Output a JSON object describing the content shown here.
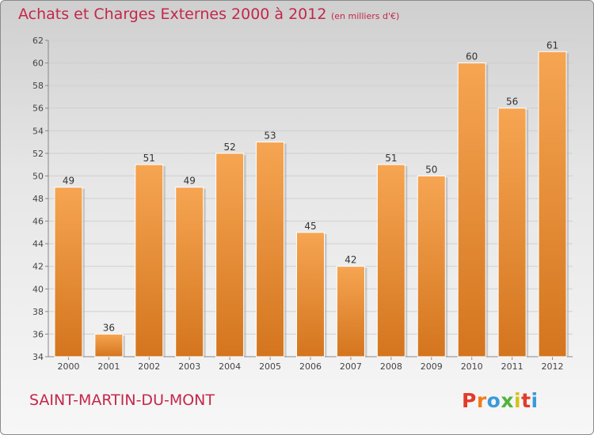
{
  "header": {
    "title": "Achats et Charges Externes 2000 à 2012",
    "unit": "(en milliers d'€)"
  },
  "footer": {
    "commune": "SAINT-MARTIN-DU-MONT",
    "logo_text": "Proxiti"
  },
  "colors": {
    "title": "#c4274a",
    "bar_light": "#f6a552",
    "bar_dark": "#d4751e",
    "logo_letters": [
      "#e23b2b",
      "#f07d1a",
      "#3a9ad8",
      "#52b33b",
      "#d4c21a",
      "#e23b2b",
      "#3a9ad8"
    ]
  },
  "chart_data": {
    "type": "bar",
    "categories": [
      "2000",
      "2001",
      "2002",
      "2003",
      "2004",
      "2005",
      "2006",
      "2007",
      "2008",
      "2009",
      "2010",
      "2011",
      "2012"
    ],
    "values": [
      49,
      36,
      51,
      49,
      52,
      53,
      45,
      42,
      51,
      50,
      60,
      56,
      61
    ],
    "data_labels": [
      "49",
      "36",
      "51",
      "49",
      "52",
      "53",
      "45",
      "42",
      "51",
      "50",
      "60",
      "56",
      "61"
    ],
    "yticks": [
      "34",
      "36",
      "38",
      "40",
      "42",
      "44",
      "46",
      "48",
      "50",
      "52",
      "54",
      "56",
      "58",
      "60",
      "62"
    ],
    "ylim": [
      34,
      62
    ],
    "grid": true,
    "title": "Achats et Charges Externes 2000 à 2012",
    "xlabel": "",
    "ylabel": ""
  }
}
